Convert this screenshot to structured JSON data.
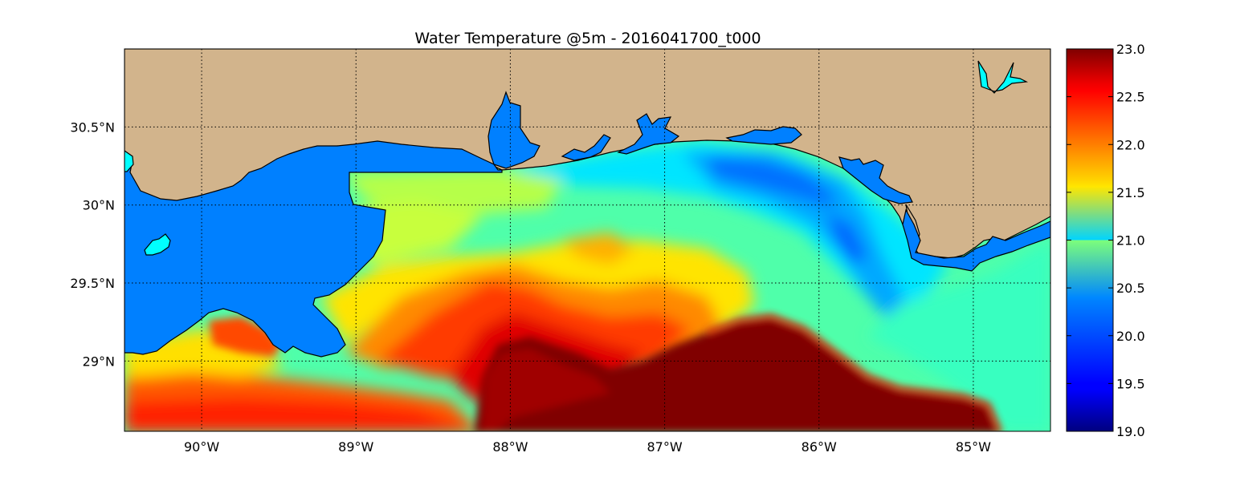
{
  "title": "Water Temperature @5m - 2016041700_t000",
  "map": {
    "lon_range": [
      -90.5,
      -84.5
    ],
    "lat_range": [
      28.55,
      31.0
    ],
    "lon_ticks": [
      "90°W",
      "89°W",
      "88°W",
      "87°W",
      "86°W",
      "85°W"
    ],
    "lat_ticks": [
      "30.5°N",
      "30°N",
      "29.5°N",
      "29°N"
    ],
    "grid": "dotted",
    "colors": {
      "land": "#d2b48c",
      "water_bodies": "#0080ff",
      "lakes": "#00ffff",
      "frame": "#000000"
    }
  },
  "colorbar": {
    "colormap": "jet",
    "range": [
      19.0,
      23.0
    ],
    "tick_labels": [
      "23.0",
      "22.5",
      "22.0",
      "21.5",
      "21.0",
      "20.5",
      "20.0",
      "19.5",
      "19.0"
    ]
  }
}
